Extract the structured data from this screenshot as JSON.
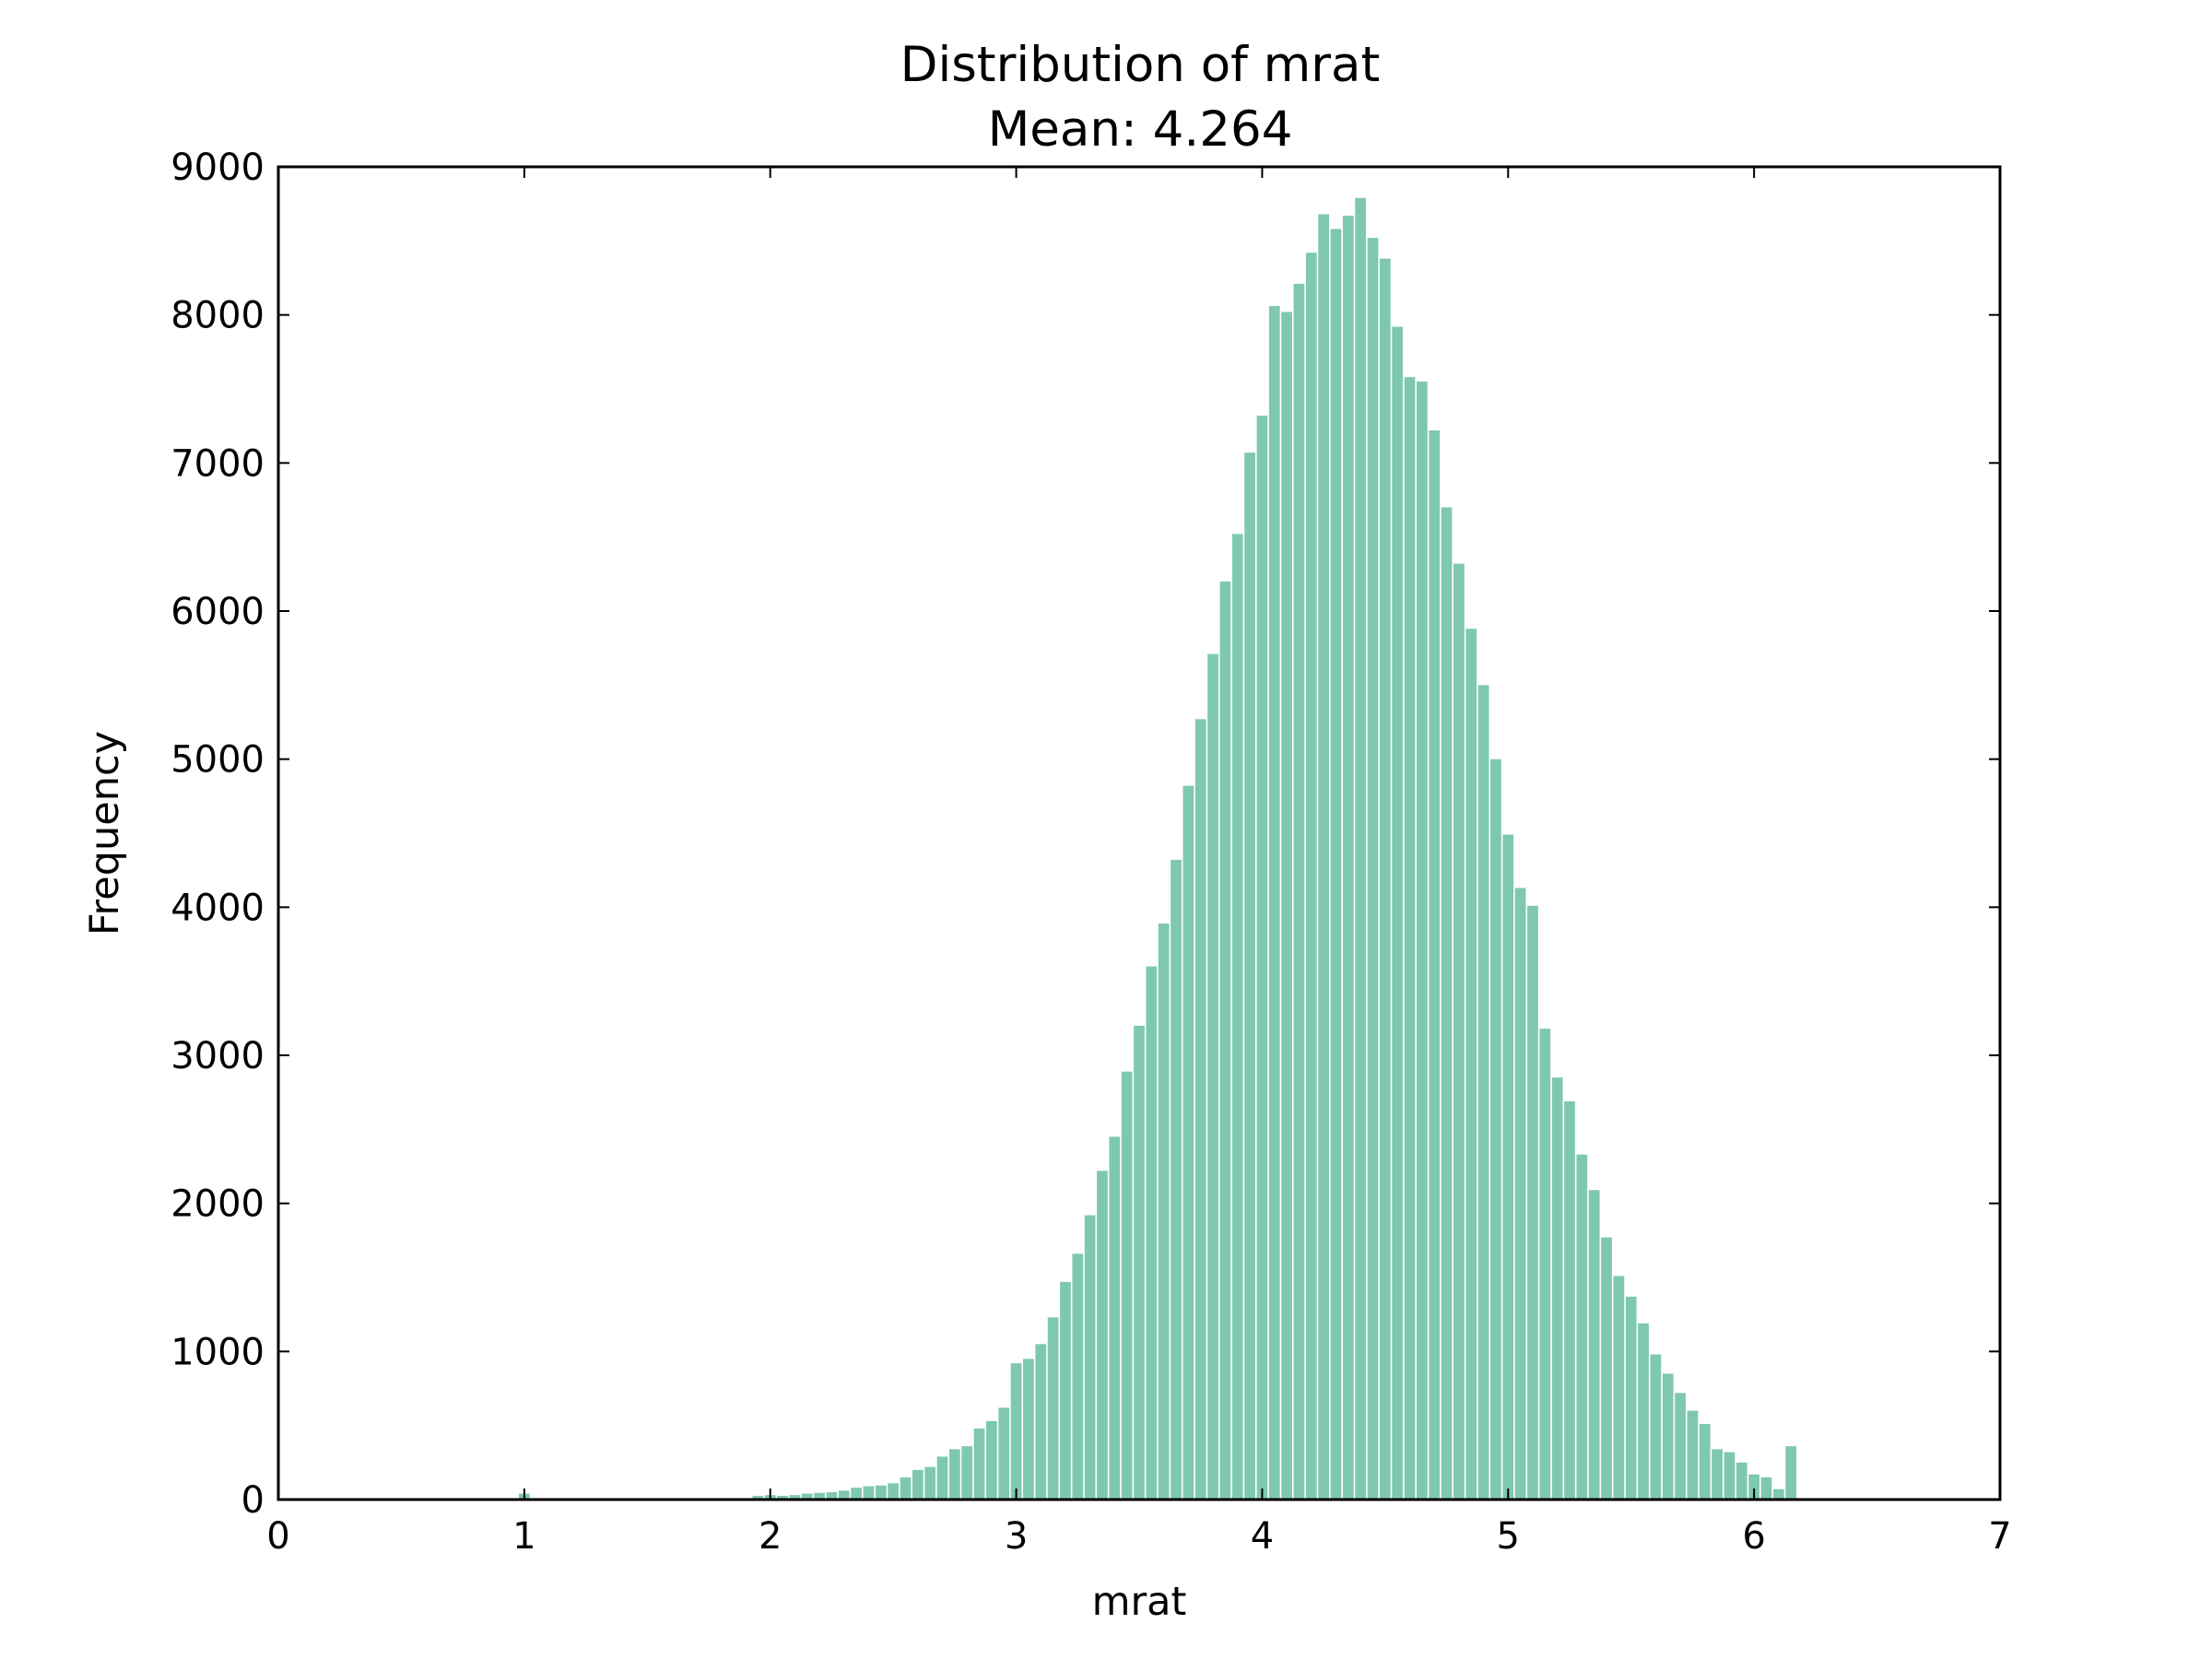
{
  "chart_data": {
    "type": "bar",
    "title": "Distribution of mrat",
    "subtitle": "Mean: 4.264",
    "xlabel": "mrat",
    "ylabel": "Frequency",
    "xlim": [
      0,
      7
    ],
    "ylim": [
      0,
      9000
    ],
    "xticks": [
      "0",
      "1",
      "2",
      "3",
      "4",
      "5",
      "6",
      "7"
    ],
    "yticks": [
      "0",
      "1000",
      "2000",
      "3000",
      "4000",
      "5000",
      "6000",
      "7000",
      "8000",
      "9000"
    ],
    "bar_color": "#7fc8b0",
    "bin_width": 0.05,
    "bins": [
      {
        "x": 1.0,
        "y": 40
      },
      {
        "x": 1.95,
        "y": 25
      },
      {
        "x": 2.0,
        "y": 30
      },
      {
        "x": 2.05,
        "y": 25
      },
      {
        "x": 2.1,
        "y": 30
      },
      {
        "x": 2.15,
        "y": 40
      },
      {
        "x": 2.2,
        "y": 45
      },
      {
        "x": 2.25,
        "y": 50
      },
      {
        "x": 2.3,
        "y": 60
      },
      {
        "x": 2.35,
        "y": 80
      },
      {
        "x": 2.4,
        "y": 90
      },
      {
        "x": 2.45,
        "y": 95
      },
      {
        "x": 2.5,
        "y": 110
      },
      {
        "x": 2.55,
        "y": 150
      },
      {
        "x": 2.6,
        "y": 200
      },
      {
        "x": 2.65,
        "y": 220
      },
      {
        "x": 2.7,
        "y": 290
      },
      {
        "x": 2.75,
        "y": 340
      },
      {
        "x": 2.8,
        "y": 360
      },
      {
        "x": 2.85,
        "y": 480
      },
      {
        "x": 2.9,
        "y": 530
      },
      {
        "x": 2.95,
        "y": 620
      },
      {
        "x": 3.0,
        "y": 920
      },
      {
        "x": 3.05,
        "y": 950
      },
      {
        "x": 3.1,
        "y": 1050
      },
      {
        "x": 3.15,
        "y": 1230
      },
      {
        "x": 3.2,
        "y": 1470
      },
      {
        "x": 3.25,
        "y": 1660
      },
      {
        "x": 3.3,
        "y": 1920
      },
      {
        "x": 3.35,
        "y": 2220
      },
      {
        "x": 3.4,
        "y": 2450
      },
      {
        "x": 3.45,
        "y": 2890
      },
      {
        "x": 3.5,
        "y": 3200
      },
      {
        "x": 3.55,
        "y": 3600
      },
      {
        "x": 3.6,
        "y": 3890
      },
      {
        "x": 3.65,
        "y": 4320
      },
      {
        "x": 3.7,
        "y": 4820
      },
      {
        "x": 3.75,
        "y": 5270
      },
      {
        "x": 3.8,
        "y": 5710
      },
      {
        "x": 3.85,
        "y": 6200
      },
      {
        "x": 3.9,
        "y": 6520
      },
      {
        "x": 3.95,
        "y": 7070
      },
      {
        "x": 4.0,
        "y": 7320
      },
      {
        "x": 4.05,
        "y": 8060
      },
      {
        "x": 4.1,
        "y": 8020
      },
      {
        "x": 4.15,
        "y": 8210
      },
      {
        "x": 4.2,
        "y": 8420
      },
      {
        "x": 4.25,
        "y": 8680
      },
      {
        "x": 4.3,
        "y": 8580
      },
      {
        "x": 4.35,
        "y": 8670
      },
      {
        "x": 4.4,
        "y": 8790
      },
      {
        "x": 4.45,
        "y": 8520
      },
      {
        "x": 4.5,
        "y": 8380
      },
      {
        "x": 4.55,
        "y": 7920
      },
      {
        "x": 4.6,
        "y": 7580
      },
      {
        "x": 4.65,
        "y": 7550
      },
      {
        "x": 4.7,
        "y": 7220
      },
      {
        "x": 4.75,
        "y": 6700
      },
      {
        "x": 4.8,
        "y": 6320
      },
      {
        "x": 4.85,
        "y": 5880
      },
      {
        "x": 4.9,
        "y": 5500
      },
      {
        "x": 4.95,
        "y": 5000
      },
      {
        "x": 5.0,
        "y": 4490
      },
      {
        "x": 5.05,
        "y": 4130
      },
      {
        "x": 5.1,
        "y": 4010
      },
      {
        "x": 5.15,
        "y": 3180
      },
      {
        "x": 5.2,
        "y": 2850
      },
      {
        "x": 5.25,
        "y": 2690
      },
      {
        "x": 5.3,
        "y": 2330
      },
      {
        "x": 5.35,
        "y": 2090
      },
      {
        "x": 5.4,
        "y": 1770
      },
      {
        "x": 5.45,
        "y": 1510
      },
      {
        "x": 5.5,
        "y": 1370
      },
      {
        "x": 5.55,
        "y": 1190
      },
      {
        "x": 5.6,
        "y": 980
      },
      {
        "x": 5.65,
        "y": 850
      },
      {
        "x": 5.7,
        "y": 720
      },
      {
        "x": 5.75,
        "y": 600
      },
      {
        "x": 5.8,
        "y": 510
      },
      {
        "x": 5.85,
        "y": 340
      },
      {
        "x": 5.9,
        "y": 320
      },
      {
        "x": 5.95,
        "y": 250
      },
      {
        "x": 6.0,
        "y": 170
      },
      {
        "x": 6.05,
        "y": 150
      },
      {
        "x": 6.1,
        "y": 70
      },
      {
        "x": 6.15,
        "y": 360
      }
    ]
  }
}
